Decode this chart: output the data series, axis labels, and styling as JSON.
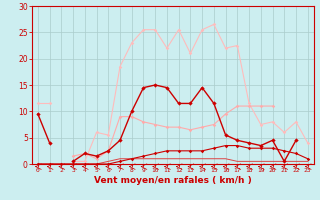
{
  "x": [
    0,
    1,
    2,
    3,
    4,
    5,
    6,
    7,
    8,
    9,
    10,
    11,
    12,
    13,
    14,
    15,
    16,
    17,
    18,
    19,
    20,
    21,
    22,
    23
  ],
  "line1": [
    9.5,
    4.0,
    null,
    0.5,
    2.0,
    1.5,
    2.5,
    4.5,
    10.0,
    14.5,
    15.0,
    14.5,
    11.5,
    11.5,
    14.5,
    11.5,
    5.5,
    4.5,
    4.0,
    3.5,
    4.5,
    0.5,
    4.5,
    null
  ],
  "line2": [
    null,
    null,
    null,
    1.5,
    2.0,
    1.0,
    2.5,
    9.0,
    9.0,
    8.0,
    7.5,
    7.0,
    7.0,
    6.5,
    7.0,
    7.5,
    9.5,
    11.0,
    11.0,
    11.0,
    11.0,
    null,
    null,
    null
  ],
  "line3": [
    11.5,
    11.5,
    null,
    0.5,
    0.5,
    6.0,
    5.5,
    18.5,
    23.0,
    25.5,
    25.5,
    22.0,
    25.5,
    21.0,
    25.5,
    26.5,
    22.0,
    22.5,
    11.5,
    7.5,
    8.0,
    6.0,
    8.0,
    4.0
  ],
  "line4_near_zero": [
    0,
    0,
    0,
    0,
    0,
    0,
    0,
    0.5,
    1.0,
    1.5,
    2.0,
    2.5,
    2.5,
    2.5,
    2.5,
    3.0,
    3.5,
    3.5,
    3.0,
    3.0,
    3.0,
    2.5,
    2.0,
    1.0
  ],
  "line5_flat": [
    0,
    0,
    0,
    0,
    0,
    0,
    0.5,
    1.0,
    1.0,
    1.0,
    1.0,
    1.0,
    1.0,
    1.0,
    1.0,
    1.0,
    1.0,
    0.5,
    0.5,
    0.5,
    0.5,
    0.5,
    0.5,
    0.5
  ],
  "bg_color": "#cceef0",
  "grid_color": "#aacccc",
  "line1_color": "#cc0000",
  "line2_color": "#ffaaaa",
  "line3_color": "#ffbbbb",
  "line4_color": "#cc0000",
  "line5_color": "#dd4444",
  "axis_color": "#cc0000",
  "xlabel": "Vent moyen/en rafales ( km/h )",
  "xlim": [
    -0.5,
    23.5
  ],
  "ylim": [
    0,
    30
  ],
  "yticks": [
    0,
    5,
    10,
    15,
    20,
    25,
    30
  ],
  "xticks": [
    0,
    1,
    2,
    3,
    4,
    5,
    6,
    7,
    8,
    9,
    10,
    11,
    12,
    13,
    14,
    15,
    16,
    17,
    18,
    19,
    20,
    21,
    22,
    23
  ]
}
